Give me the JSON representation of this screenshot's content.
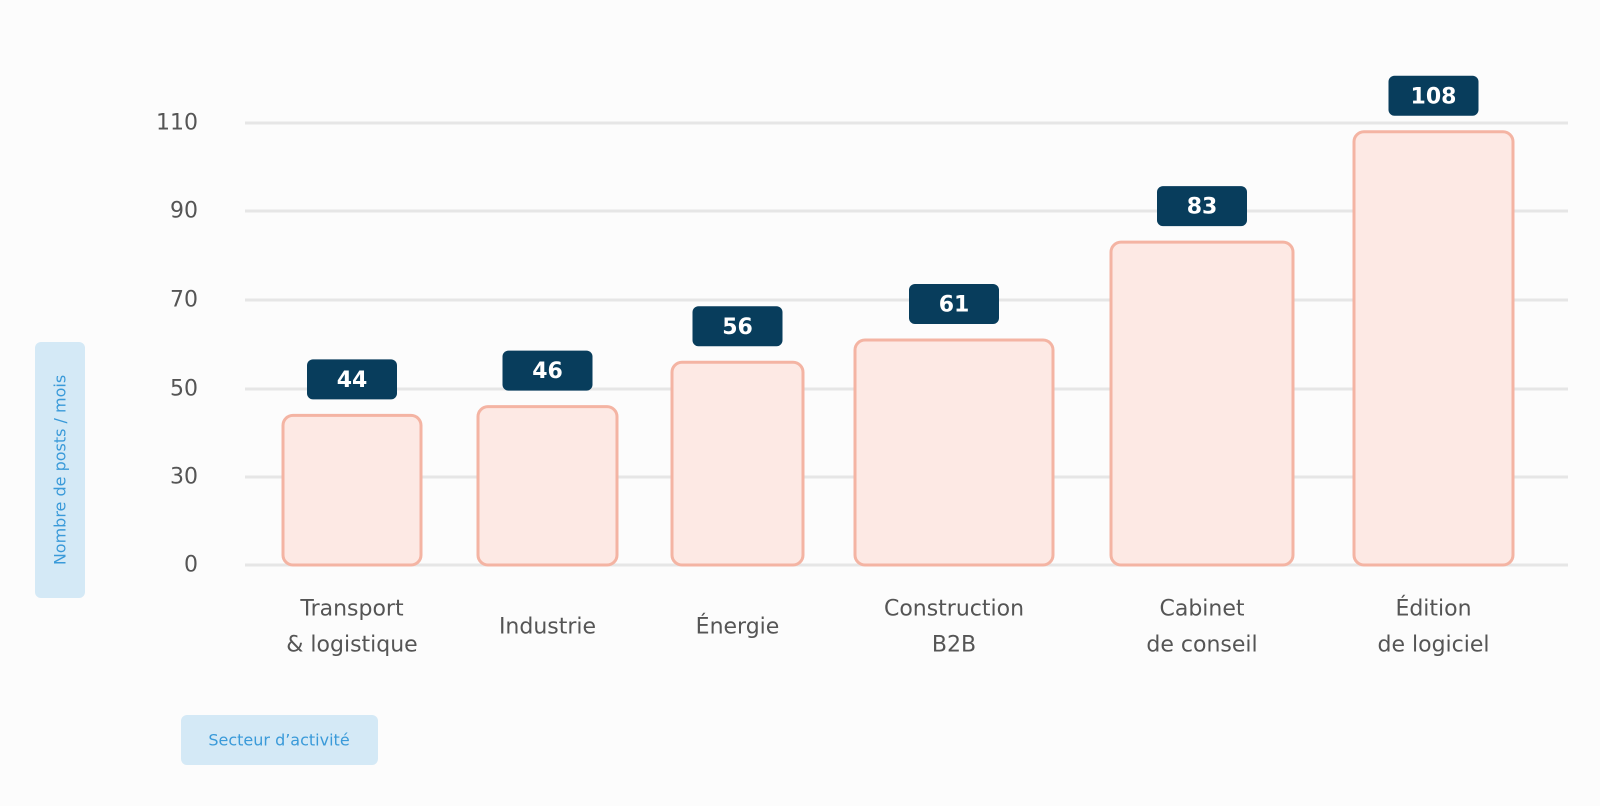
{
  "chart_data": {
    "type": "bar",
    "categories": [
      [
        "Transport",
        "& logistique"
      ],
      [
        "Industrie"
      ],
      [
        "Énergie"
      ],
      [
        "Construction",
        "B2B"
      ],
      [
        "Cabinet",
        "de conseil"
      ],
      [
        "Édition",
        "de logiciel"
      ]
    ],
    "values": [
      44,
      46,
      56,
      61,
      83,
      108
    ],
    "value_labels": [
      "44",
      "46",
      "56",
      "61",
      "83",
      "108"
    ],
    "xlabel": "Secteur d’activité",
    "ylabel": "Nombre de posts / mois",
    "yticks": [
      0,
      30,
      50,
      70,
      90,
      110
    ],
    "grid": true,
    "colors": {
      "bar_fill": "#fde9e4",
      "bar_stroke": "#f4b4a3",
      "label_bg": "#083d5c",
      "label_text": "#ffffff",
      "grid": "#e6e6e6",
      "axis_title_bg": "#d4e9f6",
      "axis_title_text": "#3a9ad9",
      "tick_text": "#555555"
    }
  }
}
